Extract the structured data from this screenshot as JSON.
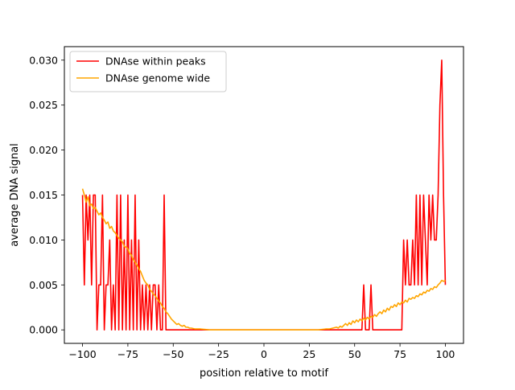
{
  "chart_data": {
    "type": "line",
    "title": "",
    "xlabel": "position relative to motif",
    "ylabel": "average DNA signal",
    "xlim": [
      -110,
      110
    ],
    "ylim": [
      -0.0015,
      0.0315
    ],
    "xticks": [
      -100,
      -75,
      -50,
      -25,
      0,
      25,
      50,
      75,
      100
    ],
    "xtick_labels": [
      "−100",
      "−75",
      "−50",
      "−25",
      "0",
      "25",
      "50",
      "75",
      "100"
    ],
    "yticks": [
      0.0,
      0.005,
      0.01,
      0.015,
      0.02,
      0.025,
      0.03
    ],
    "ytick_labels": [
      "0.000",
      "0.005",
      "0.010",
      "0.015",
      "0.020",
      "0.025",
      "0.030"
    ],
    "grid": false,
    "legend_position": "top-left",
    "series": [
      {
        "name": "DNAse within peaks",
        "color": "#ff0000",
        "points": [
          [
            -100,
            0.015
          ],
          [
            -99,
            0.005
          ],
          [
            -98,
            0.015
          ],
          [
            -97,
            0.01
          ],
          [
            -96,
            0.015
          ],
          [
            -95,
            0.005
          ],
          [
            -94,
            0.015
          ],
          [
            -93,
            0.015
          ],
          [
            -92,
            0.0
          ],
          [
            -91,
            0.005
          ],
          [
            -90,
            0.005
          ],
          [
            -89,
            0.015
          ],
          [
            -88,
            0.0
          ],
          [
            -87,
            0.005
          ],
          [
            -86,
            0.005
          ],
          [
            -85,
            0.01
          ],
          [
            -84,
            0.0
          ],
          [
            -83,
            0.005
          ],
          [
            -82,
            0.0
          ],
          [
            -81,
            0.015
          ],
          [
            -80,
            0.0
          ],
          [
            -79,
            0.015
          ],
          [
            -78,
            0.0
          ],
          [
            -77,
            0.01
          ],
          [
            -76,
            0.0
          ],
          [
            -75,
            0.015
          ],
          [
            -74,
            0.0
          ],
          [
            -73,
            0.01
          ],
          [
            -72,
            0.0
          ],
          [
            -71,
            0.015
          ],
          [
            -70,
            0.0
          ],
          [
            -69,
            0.01
          ],
          [
            -68,
            0.0
          ],
          [
            -67,
            0.005
          ],
          [
            -66,
            0.0
          ],
          [
            -65,
            0.005
          ],
          [
            -64,
            0.0
          ],
          [
            -63,
            0.005
          ],
          [
            -62,
            0.0
          ],
          [
            -61,
            0.005
          ],
          [
            -60,
            0.005
          ],
          [
            -59,
            0.0
          ],
          [
            -58,
            0.005
          ],
          [
            -57,
            0.0
          ],
          [
            -56,
            0.0
          ],
          [
            -55,
            0.015
          ],
          [
            -54,
            0.0
          ],
          [
            -50,
            0.0
          ],
          [
            -25,
            0.0
          ],
          [
            0,
            0.0
          ],
          [
            25,
            0.0
          ],
          [
            50,
            0.0
          ],
          [
            54,
            0.0
          ],
          [
            55,
            0.005
          ],
          [
            56,
            0.0
          ],
          [
            57,
            0.0
          ],
          [
            58,
            0.0
          ],
          [
            59,
            0.005
          ],
          [
            60,
            0.0
          ],
          [
            75,
            0.0
          ],
          [
            76,
            0.0
          ],
          [
            77,
            0.01
          ],
          [
            78,
            0.005
          ],
          [
            79,
            0.01
          ],
          [
            80,
            0.005
          ],
          [
            81,
            0.005
          ],
          [
            82,
            0.01
          ],
          [
            83,
            0.005
          ],
          [
            84,
            0.015
          ],
          [
            85,
            0.005
          ],
          [
            86,
            0.015
          ],
          [
            87,
            0.005
          ],
          [
            88,
            0.015
          ],
          [
            89,
            0.01
          ],
          [
            90,
            0.005
          ],
          [
            91,
            0.015
          ],
          [
            92,
            0.01
          ],
          [
            93,
            0.015
          ],
          [
            94,
            0.01
          ],
          [
            95,
            0.01
          ],
          [
            96,
            0.015
          ],
          [
            97,
            0.025
          ],
          [
            98,
            0.03
          ],
          [
            99,
            0.015
          ],
          [
            100,
            0.005
          ]
        ]
      },
      {
        "name": "DNAse genome wide",
        "color": "#ffa500",
        "points": [
          [
            -100,
            0.0157
          ],
          [
            -99,
            0.015
          ],
          [
            -98,
            0.0142
          ],
          [
            -97,
            0.0148
          ],
          [
            -96,
            0.0138
          ],
          [
            -95,
            0.014
          ],
          [
            -94,
            0.0135
          ],
          [
            -93,
            0.0136
          ],
          [
            -92,
            0.0132
          ],
          [
            -91,
            0.0128
          ],
          [
            -90,
            0.013
          ],
          [
            -89,
            0.0125
          ],
          [
            -88,
            0.0122
          ],
          [
            -87,
            0.0118
          ],
          [
            -86,
            0.012
          ],
          [
            -85,
            0.0113
          ],
          [
            -84,
            0.0115
          ],
          [
            -83,
            0.011
          ],
          [
            -82,
            0.0108
          ],
          [
            -81,
            0.0105
          ],
          [
            -80,
            0.0102
          ],
          [
            -79,
            0.01
          ],
          [
            -78,
            0.0098
          ],
          [
            -77,
            0.0093
          ],
          [
            -76,
            0.0092
          ],
          [
            -75,
            0.009
          ],
          [
            -74,
            0.0085
          ],
          [
            -73,
            0.0083
          ],
          [
            -72,
            0.0078
          ],
          [
            -71,
            0.0075
          ],
          [
            -70,
            0.0072
          ],
          [
            -69,
            0.0068
          ],
          [
            -68,
            0.0065
          ],
          [
            -67,
            0.006
          ],
          [
            -66,
            0.0055
          ],
          [
            -65,
            0.0052
          ],
          [
            -64,
            0.005
          ],
          [
            -63,
            0.0045
          ],
          [
            -62,
            0.0043
          ],
          [
            -61,
            0.004
          ],
          [
            -60,
            0.0038
          ],
          [
            -59,
            0.0035
          ],
          [
            -58,
            0.0032
          ],
          [
            -57,
            0.003
          ],
          [
            -56,
            0.0026
          ],
          [
            -55,
            0.0024
          ],
          [
            -54,
            0.002
          ],
          [
            -53,
            0.0018
          ],
          [
            -52,
            0.0015
          ],
          [
            -51,
            0.0012
          ],
          [
            -50,
            0.001
          ],
          [
            -49,
            0.0008
          ],
          [
            -48,
            0.0006
          ],
          [
            -47,
            0.0007
          ],
          [
            -46,
            0.0005
          ],
          [
            -45,
            0.0004
          ],
          [
            -44,
            0.0005
          ],
          [
            -43,
            0.0003
          ],
          [
            -42,
            0.0003
          ],
          [
            -41,
            0.0002
          ],
          [
            -40,
            0.0002
          ],
          [
            -38,
            0.0001
          ],
          [
            -35,
            0.0001
          ],
          [
            -30,
            0.0
          ],
          [
            -20,
            0.0
          ],
          [
            0,
            0.0
          ],
          [
            20,
            0.0
          ],
          [
            30,
            0.0
          ],
          [
            34,
            0.0001
          ],
          [
            36,
            0.0001
          ],
          [
            38,
            0.0002
          ],
          [
            40,
            0.0003
          ],
          [
            41,
            0.0002
          ],
          [
            42,
            0.0004
          ],
          [
            43,
            0.0003
          ],
          [
            44,
            0.0005
          ],
          [
            45,
            0.0007
          ],
          [
            46,
            0.0005
          ],
          [
            47,
            0.0008
          ],
          [
            48,
            0.0006
          ],
          [
            49,
            0.001
          ],
          [
            50,
            0.0008
          ],
          [
            51,
            0.0011
          ],
          [
            52,
            0.0009
          ],
          [
            53,
            0.0012
          ],
          [
            54,
            0.001
          ],
          [
            55,
            0.0013
          ],
          [
            56,
            0.0011
          ],
          [
            57,
            0.0014
          ],
          [
            58,
            0.0012
          ],
          [
            59,
            0.0015
          ],
          [
            60,
            0.0014
          ],
          [
            61,
            0.0017
          ],
          [
            62,
            0.0015
          ],
          [
            63,
            0.0018
          ],
          [
            64,
            0.002
          ],
          [
            65,
            0.0018
          ],
          [
            66,
            0.0022
          ],
          [
            67,
            0.002
          ],
          [
            68,
            0.0024
          ],
          [
            69,
            0.0022
          ],
          [
            70,
            0.0026
          ],
          [
            71,
            0.0025
          ],
          [
            72,
            0.0028
          ],
          [
            73,
            0.0026
          ],
          [
            74,
            0.003
          ],
          [
            75,
            0.0028
          ],
          [
            76,
            0.0031
          ],
          [
            77,
            0.003
          ],
          [
            78,
            0.0033
          ],
          [
            79,
            0.0031
          ],
          [
            80,
            0.0035
          ],
          [
            81,
            0.0034
          ],
          [
            82,
            0.0036
          ],
          [
            83,
            0.0035
          ],
          [
            84,
            0.0038
          ],
          [
            85,
            0.0037
          ],
          [
            86,
            0.004
          ],
          [
            87,
            0.0039
          ],
          [
            88,
            0.0042
          ],
          [
            89,
            0.0041
          ],
          [
            90,
            0.0044
          ],
          [
            91,
            0.0043
          ],
          [
            92,
            0.0046
          ],
          [
            93,
            0.0045
          ],
          [
            94,
            0.0048
          ],
          [
            95,
            0.0047
          ],
          [
            96,
            0.005
          ],
          [
            97,
            0.0052
          ],
          [
            98,
            0.0055
          ],
          [
            99,
            0.0054
          ],
          [
            100,
            0.0055
          ]
        ]
      }
    ]
  }
}
